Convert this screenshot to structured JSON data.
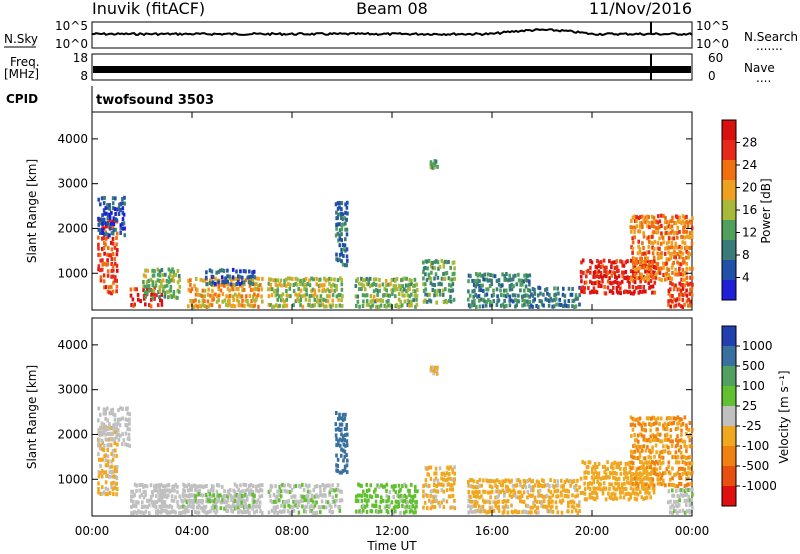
{
  "header": {
    "station": "Inuvik (fitACF)",
    "beam": "Beam 08",
    "date": "11/Nov/2016"
  },
  "strip_noise": {
    "left_label": "N.Sky",
    "right_label": "N.Search",
    "left_ticks": [
      "10^5",
      "10^0"
    ],
    "right_ticks": [
      "10^5",
      "10^0"
    ],
    "legend_dots": "......."
  },
  "strip_freq": {
    "left_label_1": "Freq.",
    "left_label_2": "[MHz]",
    "right_label": "Nave",
    "left_ticks": [
      "18",
      "8"
    ],
    "right_ticks": [
      "60",
      "0"
    ],
    "legend_dots": "...."
  },
  "cpid": {
    "label": "CPID",
    "value": "twofsound 3503"
  },
  "x_axis": {
    "label": "Time UT",
    "ticks": [
      "00:00",
      "04:00",
      "08:00",
      "12:00",
      "16:00",
      "20:00",
      "00:00"
    ]
  },
  "colors": {
    "power": [
      "#1f1fd8",
      "#2050a8",
      "#3a7a78",
      "#4ea05c",
      "#a8b838",
      "#f0a020",
      "#f07010",
      "#e82818",
      "#d81010"
    ],
    "velocity": [
      "#2040b0",
      "#3a70a0",
      "#50a060",
      "#60c030",
      "#c0c0c0",
      "#f0a820",
      "#f08010",
      "#e85010",
      "#e01010"
    ]
  },
  "chart_data": [
    {
      "type": "heatmap",
      "title": "",
      "xlabel": "",
      "ylabel": "Slant Range [km]",
      "x_range_hours": [
        0,
        24
      ],
      "ylim": [
        180,
        4600
      ],
      "y_ticks": [
        "1000",
        "2000",
        "3000",
        "4000"
      ],
      "colorbar": {
        "label": "Power [dB]",
        "ticks": [
          "4",
          "8",
          "12",
          "16",
          "20",
          "24",
          "28"
        ],
        "range": [
          0,
          32
        ]
      },
      "blobs": [
        {
          "t0": 0.2,
          "t1": 1.0,
          "r0": 500,
          "r1": 2200,
          "level": 26
        },
        {
          "t0": 0.2,
          "t1": 1.3,
          "r0": 1800,
          "r1": 2700,
          "level": 6
        },
        {
          "t0": 1.5,
          "t1": 2.8,
          "r0": 200,
          "r1": 700,
          "level": 28
        },
        {
          "t0": 2.0,
          "t1": 3.5,
          "r0": 400,
          "r1": 1100,
          "level": 14
        },
        {
          "t0": 3.8,
          "t1": 6.8,
          "r0": 200,
          "r1": 900,
          "level": 20
        },
        {
          "t0": 4.5,
          "t1": 6.5,
          "r0": 700,
          "r1": 1100,
          "level": 6
        },
        {
          "t0": 7.0,
          "t1": 10.0,
          "r0": 200,
          "r1": 900,
          "level": 16
        },
        {
          "t0": 9.7,
          "t1": 10.2,
          "r0": 1100,
          "r1": 2600,
          "level": 8
        },
        {
          "t0": 10.5,
          "t1": 13.0,
          "r0": 200,
          "r1": 900,
          "level": 14
        },
        {
          "t0": 13.2,
          "t1": 14.5,
          "r0": 300,
          "r1": 1300,
          "level": 12
        },
        {
          "t0": 15.0,
          "t1": 17.5,
          "r0": 200,
          "r1": 1000,
          "level": 10
        },
        {
          "t0": 17.5,
          "t1": 19.5,
          "r0": 200,
          "r1": 700,
          "level": 8
        },
        {
          "t0": 19.5,
          "t1": 22.5,
          "r0": 500,
          "r1": 1300,
          "level": 28
        },
        {
          "t0": 21.5,
          "t1": 24.0,
          "r0": 800,
          "r1": 2300,
          "level": 22
        },
        {
          "t0": 23.0,
          "t1": 24.0,
          "r0": 200,
          "r1": 800,
          "level": 26
        },
        {
          "t0": 13.5,
          "t1": 13.8,
          "r0": 3300,
          "r1": 3500,
          "level": 12
        }
      ]
    },
    {
      "type": "heatmap",
      "title": "",
      "xlabel": "Time UT",
      "ylabel": "Slant Range [km]",
      "x_range_hours": [
        0,
        24
      ],
      "ylim": [
        180,
        4600
      ],
      "y_ticks": [
        "1000",
        "2000",
        "3000",
        "4000"
      ],
      "colorbar": {
        "label": "Velocity [m s⁻¹]",
        "ticks": [
          "1000",
          "500",
          "100",
          "25",
          "-25",
          "-100",
          "-500",
          "-1000"
        ],
        "range": [
          -1200,
          1200
        ]
      },
      "blobs": [
        {
          "t0": 0.2,
          "t1": 1.0,
          "r0": 600,
          "r1": 2200,
          "level": -150
        },
        {
          "t0": 0.2,
          "t1": 1.5,
          "r0": 1700,
          "r1": 2600,
          "level": 0
        },
        {
          "t0": 1.5,
          "t1": 3.0,
          "r0": 200,
          "r1": 900,
          "level": 0
        },
        {
          "t0": 2.5,
          "t1": 6.8,
          "r0": 200,
          "r1": 900,
          "level": 0
        },
        {
          "t0": 3.5,
          "t1": 6.5,
          "r0": 300,
          "r1": 700,
          "level": 120
        },
        {
          "t0": 7.0,
          "t1": 10.0,
          "r0": 200,
          "r1": 900,
          "level": 80
        },
        {
          "t0": 9.7,
          "t1": 10.2,
          "r0": 1100,
          "r1": 2500,
          "level": 800
        },
        {
          "t0": 10.5,
          "t1": 13.0,
          "r0": 200,
          "r1": 900,
          "level": 200
        },
        {
          "t0": 13.2,
          "t1": 14.5,
          "r0": 300,
          "r1": 1300,
          "level": -200
        },
        {
          "t0": 15.0,
          "t1": 19.5,
          "r0": 200,
          "r1": 1000,
          "level": -200
        },
        {
          "t0": 19.5,
          "t1": 22.5,
          "r0": 500,
          "r1": 1400,
          "level": -300
        },
        {
          "t0": 21.5,
          "t1": 24.0,
          "r0": 800,
          "r1": 2400,
          "level": -400
        },
        {
          "t0": 23.0,
          "t1": 24.0,
          "r0": 200,
          "r1": 800,
          "level": 60
        },
        {
          "t0": 13.5,
          "t1": 13.8,
          "r0": 3300,
          "r1": 3500,
          "level": -150
        }
      ]
    }
  ]
}
